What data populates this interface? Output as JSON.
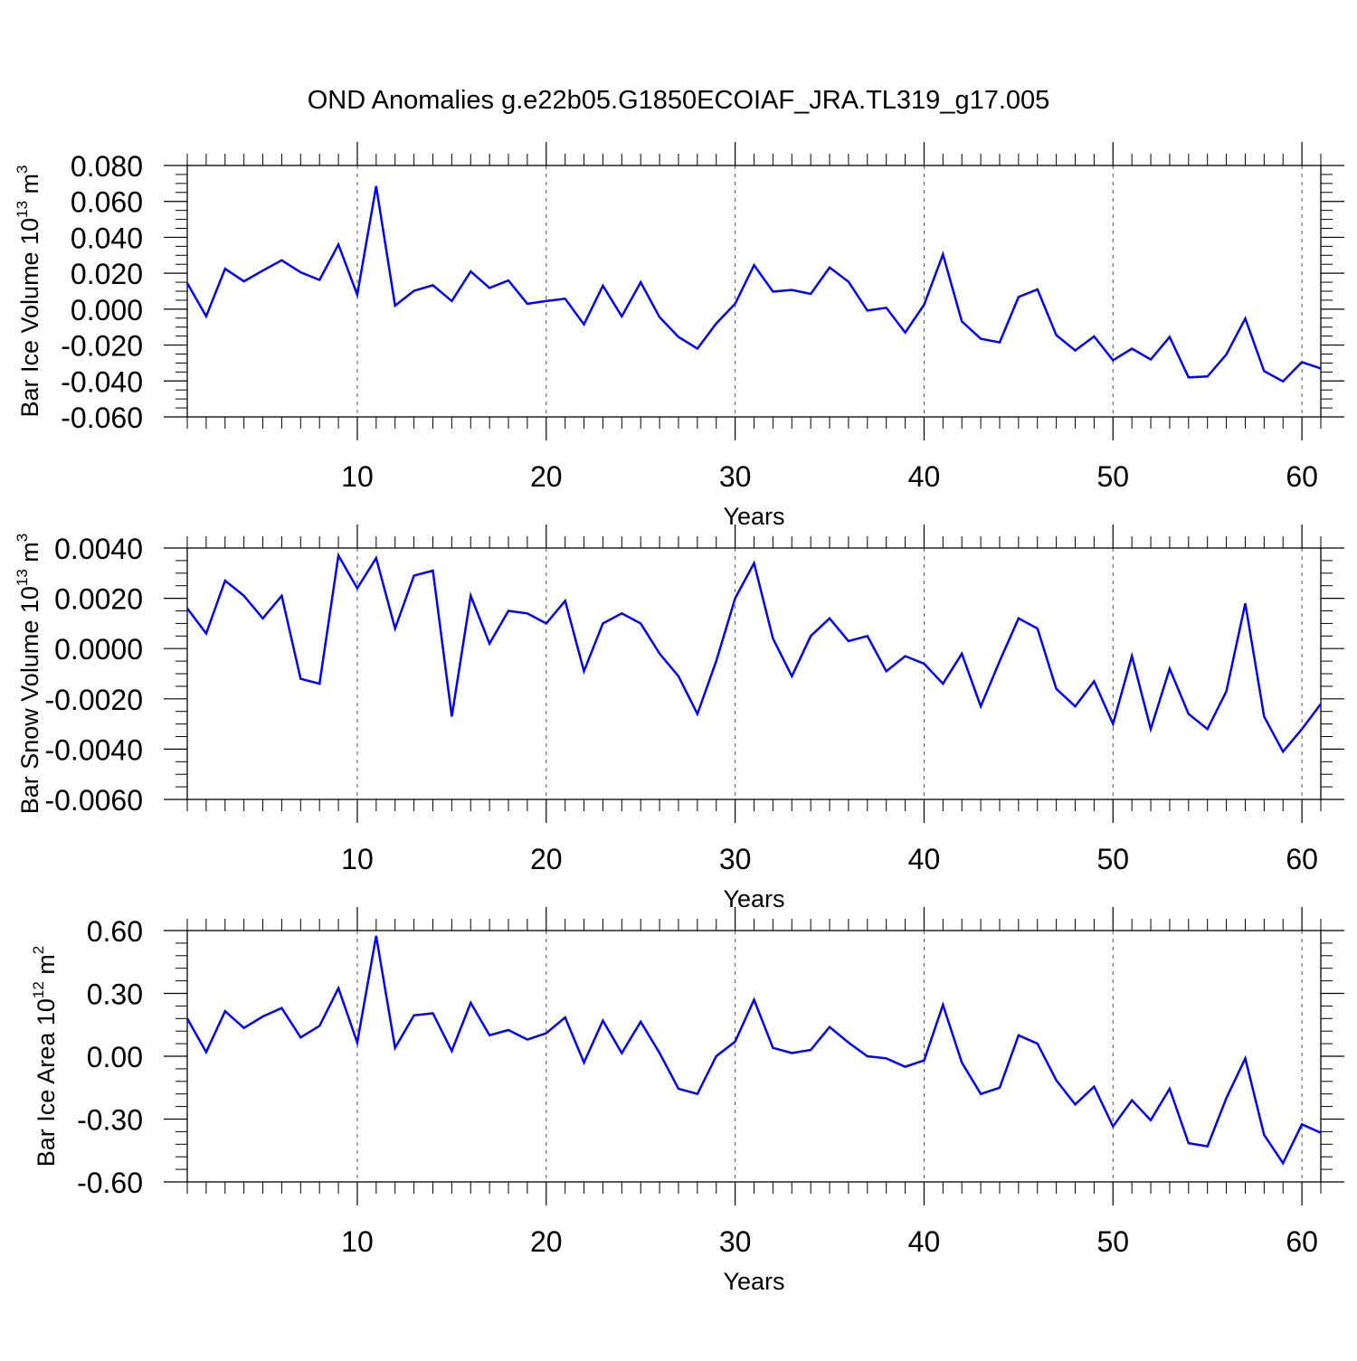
{
  "title": "OND Anomalies g.e22b05.G1850ECOIAF_JRA.TL319_g17.005",
  "line_color": "#0000ff",
  "chart_data": [
    {
      "type": "line",
      "ylabel": "Bar Ice Volume 10",
      "ylabel_exp": "13",
      "ylabel_unit": " m",
      "ylabel_unit_exp": "3",
      "xlabel": "Years",
      "xlim": [
        1,
        61
      ],
      "ylim": [
        -0.06,
        0.08
      ],
      "x_ticks": [
        10,
        20,
        30,
        40,
        50,
        60
      ],
      "y_ticks": [
        "-0.060",
        "-0.040",
        "-0.020",
        "0.000",
        "0.020",
        "0.040",
        "0.060",
        "0.080"
      ],
      "y_tick_values": [
        -0.06,
        -0.04,
        -0.02,
        0.0,
        0.02,
        0.04,
        0.06,
        0.08
      ],
      "y_minor_step": 0.005,
      "grid": "vertical dashed at major x ticks",
      "x": [
        1,
        2,
        3,
        4,
        5,
        6,
        7,
        8,
        9,
        10,
        11,
        12,
        13,
        14,
        15,
        16,
        17,
        18,
        19,
        20,
        21,
        22,
        23,
        24,
        25,
        26,
        27,
        28,
        29,
        30,
        31,
        32,
        33,
        34,
        35,
        36,
        37,
        38,
        39,
        40,
        41,
        42,
        43,
        44,
        45,
        46,
        47,
        48,
        49,
        50,
        51,
        52,
        53,
        54,
        55,
        56,
        57,
        58,
        59,
        60,
        61
      ],
      "values": [
        0.0145,
        -0.004,
        0.0225,
        0.0155,
        0.0215,
        0.0272,
        0.0205,
        0.0163,
        0.036,
        0.008,
        0.0685,
        0.002,
        0.0102,
        0.0133,
        0.0045,
        0.021,
        0.0118,
        0.016,
        0.003,
        0.0045,
        0.0058,
        -0.0085,
        0.013,
        -0.004,
        0.015,
        -0.0045,
        -0.0155,
        -0.022,
        -0.008,
        0.003,
        0.0245,
        0.0098,
        0.0107,
        0.0085,
        0.0232,
        0.0153,
        -0.0008,
        0.0008,
        -0.013,
        0.0025,
        0.0305,
        -0.0068,
        -0.0165,
        -0.0185,
        0.0068,
        0.011,
        -0.0145,
        -0.023,
        -0.0152,
        -0.0285,
        -0.022,
        -0.028,
        -0.0155,
        -0.038,
        -0.0375,
        -0.0252,
        -0.0052,
        -0.0345,
        -0.0402,
        -0.0295,
        -0.033
      ]
    },
    {
      "type": "line",
      "ylabel": "Bar Snow Volume 10",
      "ylabel_exp": "13",
      "ylabel_unit": " m",
      "ylabel_unit_exp": "3",
      "xlabel": "Years",
      "xlim": [
        1,
        61
      ],
      "ylim": [
        -0.006,
        0.004
      ],
      "x_ticks": [
        10,
        20,
        30,
        40,
        50,
        60
      ],
      "y_ticks": [
        "-0.0060",
        "-0.0040",
        "-0.0020",
        "0.0000",
        "0.0020",
        "0.0040"
      ],
      "y_tick_values": [
        -0.006,
        -0.004,
        -0.002,
        0.0,
        0.002,
        0.004
      ],
      "y_minor_step": 0.0005,
      "grid": "vertical dashed at major x ticks",
      "x": [
        1,
        2,
        3,
        4,
        5,
        6,
        7,
        8,
        9,
        10,
        11,
        12,
        13,
        14,
        15,
        16,
        17,
        18,
        19,
        20,
        21,
        22,
        23,
        24,
        25,
        26,
        27,
        28,
        29,
        30,
        31,
        32,
        33,
        34,
        35,
        36,
        37,
        38,
        39,
        40,
        41,
        42,
        43,
        44,
        45,
        46,
        47,
        48,
        49,
        50,
        51,
        52,
        53,
        54,
        55,
        56,
        57,
        58,
        59,
        60,
        61
      ],
      "values": [
        0.0016,
        0.0006,
        0.0027,
        0.0021,
        0.0012,
        0.0021,
        -0.0012,
        -0.0014,
        0.0037,
        0.0024,
        0.0036,
        0.0008,
        0.0029,
        0.0031,
        -0.0027,
        0.0021,
        0.0002,
        0.0015,
        0.0014,
        0.001,
        0.0019,
        -0.0009,
        0.001,
        0.0014,
        0.001,
        -0.0002,
        -0.0011,
        -0.0026,
        -0.0005,
        0.002,
        0.0034,
        0.0004,
        -0.0011,
        0.0005,
        0.0012,
        0.0003,
        0.0005,
        -0.0009,
        -0.0003,
        -0.0006,
        -0.0014,
        -0.0002,
        -0.0023,
        -0.0005,
        0.0012,
        0.0008,
        -0.0016,
        -0.0023,
        -0.0013,
        -0.003,
        -0.0003,
        -0.0032,
        -0.0008,
        -0.0026,
        -0.0032,
        -0.0017,
        0.0018,
        -0.0027,
        -0.0041,
        -0.0032,
        -0.0022
      ]
    },
    {
      "type": "line",
      "ylabel": "Bar Ice Area 10",
      "ylabel_exp": "12",
      "ylabel_unit": " m",
      "ylabel_unit_exp": "2",
      "xlabel": "Years",
      "xlim": [
        1,
        61
      ],
      "ylim": [
        -0.6,
        0.6
      ],
      "x_ticks": [
        10,
        20,
        30,
        40,
        50,
        60
      ],
      "y_ticks": [
        "-0.60",
        "-0.30",
        "0.00",
        "0.30",
        "0.60"
      ],
      "y_tick_values": [
        -0.6,
        -0.3,
        0.0,
        0.3,
        0.6
      ],
      "y_minor_step": 0.06,
      "grid": "vertical dashed at major x ticks",
      "x": [
        1,
        2,
        3,
        4,
        5,
        6,
        7,
        8,
        9,
        10,
        11,
        12,
        13,
        14,
        15,
        16,
        17,
        18,
        19,
        20,
        21,
        22,
        23,
        24,
        25,
        26,
        27,
        28,
        29,
        30,
        31,
        32,
        33,
        34,
        35,
        36,
        37,
        38,
        39,
        40,
        41,
        42,
        43,
        44,
        45,
        46,
        47,
        48,
        49,
        50,
        51,
        52,
        53,
        54,
        55,
        56,
        57,
        58,
        59,
        60,
        61
      ],
      "values": [
        0.18,
        0.02,
        0.215,
        0.135,
        0.19,
        0.23,
        0.09,
        0.145,
        0.325,
        0.065,
        0.575,
        0.04,
        0.195,
        0.205,
        0.025,
        0.255,
        0.1,
        0.125,
        0.08,
        0.11,
        0.185,
        -0.03,
        0.17,
        0.015,
        0.165,
        0.015,
        -0.155,
        -0.18,
        0.0,
        0.07,
        0.27,
        0.04,
        0.015,
        0.03,
        0.14,
        0.065,
        0.0,
        -0.01,
        -0.05,
        -0.02,
        0.245,
        -0.03,
        -0.18,
        -0.15,
        0.1,
        0.06,
        -0.115,
        -0.23,
        -0.145,
        -0.335,
        -0.21,
        -0.305,
        -0.155,
        -0.415,
        -0.43,
        -0.2,
        -0.01,
        -0.375,
        -0.51,
        -0.325,
        -0.365
      ]
    }
  ]
}
